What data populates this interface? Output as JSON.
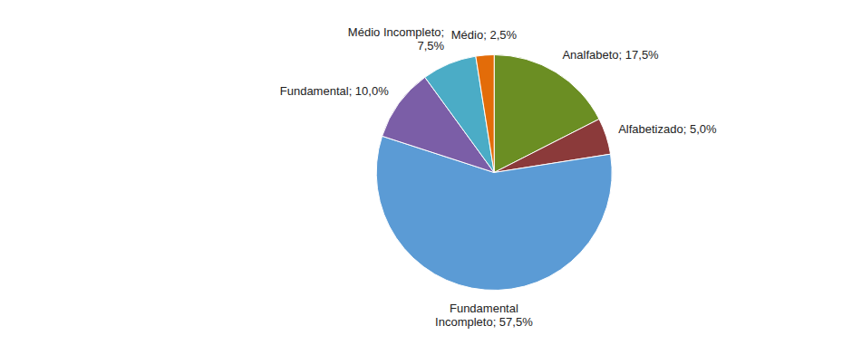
{
  "chart_data": {
    "type": "pie",
    "categories": [
      "Analfabeto; 17,5%",
      "Alfabetizado; 5,0%",
      "Fundamental\nIncompleto; 57,5%",
      "Fundamental; 10,0%",
      "Médio Incompleto;\n7,5%",
      "Médio; 2,5%"
    ],
    "values": [
      17.5,
      5.0,
      57.5,
      10.0,
      7.5,
      2.5
    ],
    "colors": [
      "#6b8e23",
      "#8b3a3a",
      "#5b9bd5",
      "#7b5ea7",
      "#4bacc6",
      "#e36c09"
    ]
  }
}
